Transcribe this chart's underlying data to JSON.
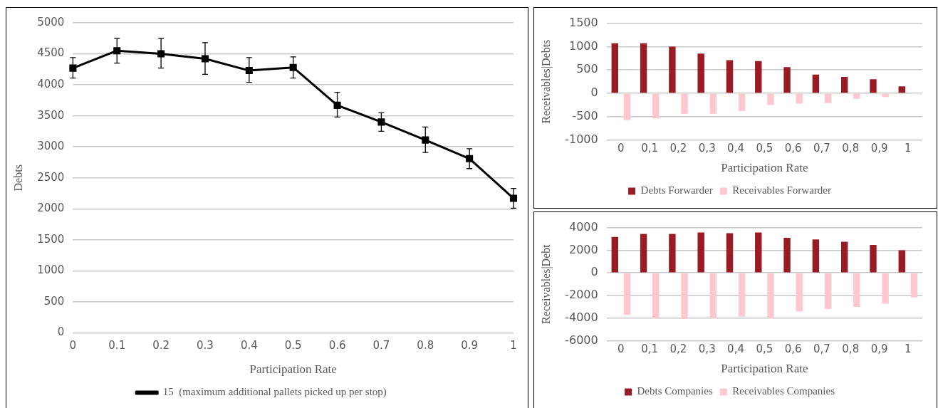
{
  "chart_data": [
    {
      "type": "line",
      "xlabel": "Participation Rate",
      "ylabel": "Debts",
      "categories": [
        "0",
        "0.1",
        "0.2",
        "0.3",
        "0.4",
        "0.5",
        "0.6",
        "0.7",
        "0.8",
        "0.9",
        "1"
      ],
      "series": [
        {
          "name": "15  (maximum additional pallets picked up per stop)",
          "color": "#000000",
          "values": [
            4270,
            4550,
            4500,
            4420,
            4230,
            4280,
            3670,
            3400,
            3110,
            2810,
            2170
          ],
          "errors": [
            [
              4110,
              4440
            ],
            [
              4350,
              4750
            ],
            [
              4270,
              4750
            ],
            [
              4170,
              4680
            ],
            [
              4040,
              4440
            ],
            [
              4110,
              4450
            ],
            [
              3480,
              3880
            ],
            [
              3250,
              3550
            ],
            [
              2910,
              3320
            ],
            [
              2650,
              2970
            ],
            [
              2010,
              2330
            ]
          ]
        }
      ],
      "ylim": [
        0,
        5000
      ],
      "yticks": [
        0,
        500,
        1000,
        1500,
        2000,
        2500,
        3000,
        3500,
        4000,
        4500,
        5000
      ],
      "grid": "y",
      "legend": "bottom",
      "marker": "square",
      "line_style": "solid"
    },
    {
      "type": "bar",
      "xlabel": "Participation Rate",
      "ylabel": "Receivables|Debts",
      "categories": [
        "0",
        "0,1",
        "0,2",
        "0,3",
        "0,4",
        "0,5",
        "0,6",
        "0,7",
        "0,8",
        "0,9",
        "1"
      ],
      "series": [
        {
          "name": "Debts Forwarder",
          "color": "#9b1b24",
          "values": [
            1070,
            1070,
            1000,
            850,
            710,
            690,
            560,
            400,
            350,
            300,
            150
          ]
        },
        {
          "name": "Receivables Forwarder",
          "color": "#ffc7ce",
          "values": [
            -570,
            -540,
            -440,
            -440,
            -380,
            -250,
            -220,
            -210,
            -120,
            -80,
            -10
          ]
        }
      ],
      "ylim": [
        -1000,
        1500
      ],
      "yticks": [
        -1000,
        -500,
        0,
        500,
        1000,
        1500
      ],
      "grid": "y",
      "legend": "bottom"
    },
    {
      "type": "bar",
      "xlabel": "Participation Rate",
      "ylabel": "Receivables|Debt",
      "categories": [
        "0",
        "0,1",
        "0,2",
        "0,3",
        "0,4",
        "0,5",
        "0,6",
        "0,7",
        "0,8",
        "0,9",
        "1"
      ],
      "series": [
        {
          "name": "Debts Companies",
          "color": "#9b1b24",
          "values": [
            3170,
            3440,
            3440,
            3560,
            3500,
            3560,
            3100,
            2960,
            2750,
            2460,
            2000
          ]
        },
        {
          "name": "Receivables Companies",
          "color": "#ffc7ce",
          "values": [
            -3710,
            -4000,
            -4080,
            -4000,
            -3850,
            -4000,
            -3420,
            -3190,
            -3000,
            -2730,
            -2170
          ]
        }
      ],
      "ylim": [
        -6000,
        4000
      ],
      "yticks": [
        -6000,
        -4000,
        -2000,
        0,
        2000,
        4000
      ],
      "grid": "y",
      "legend": "bottom"
    }
  ]
}
